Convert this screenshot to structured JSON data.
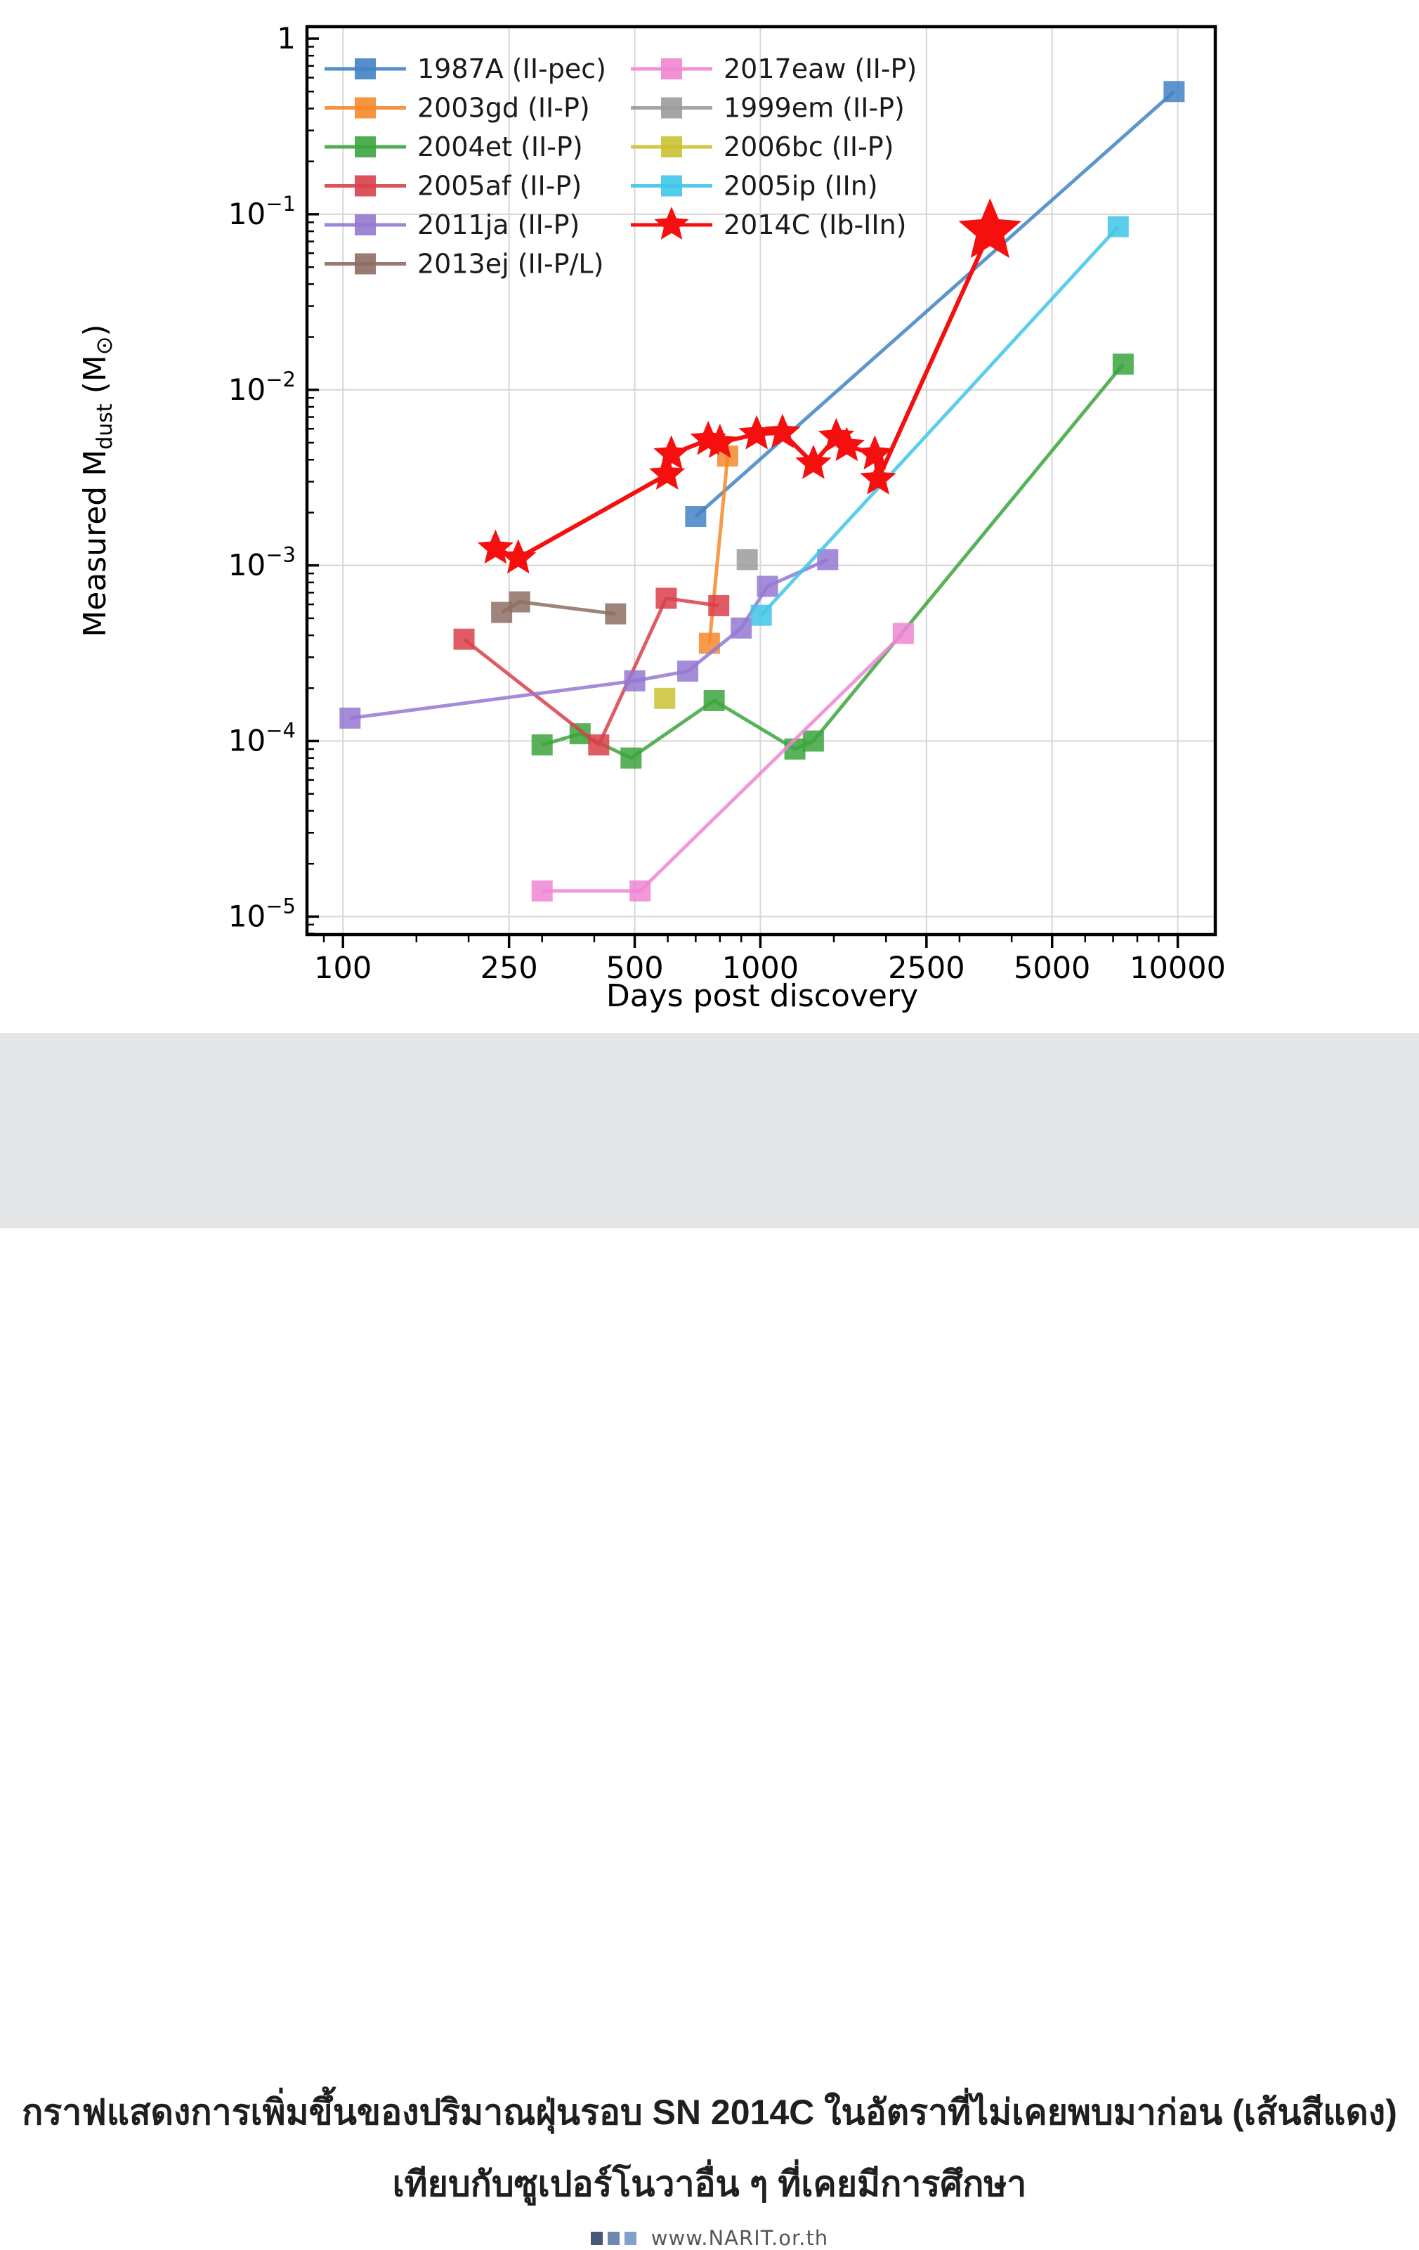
{
  "chart_data": {
    "type": "line",
    "title": "",
    "xlabel": "Days post discovery",
    "ylabel": "Measured M_dust (M_sun)",
    "ylabel_parts": {
      "prefix": "Measured M",
      "sub": "dust",
      "mid": " (M",
      "sun": "⊙",
      "suffix": ")"
    },
    "x_scale": "log",
    "y_scale": "log",
    "xlim": [
      82,
      12300
    ],
    "ylim": [
      7.9e-06,
      1.17
    ],
    "x_major_ticks": [
      100,
      250,
      500,
      1000,
      2500,
      5000,
      10000
    ],
    "y_major_tick_exponents": [
      0,
      -1,
      -2,
      -3,
      -4,
      -5
    ],
    "grid": true,
    "legend_position": "upper-left two-column frameless",
    "legend_columns": [
      [
        0,
        1,
        2,
        3,
        4,
        5
      ],
      [
        6,
        7,
        8,
        9,
        10
      ]
    ],
    "series": [
      {
        "name": "1987A",
        "type_label": "II-pec",
        "legend_label": "1987A (II-pec)",
        "color": "#4383c4",
        "marker": "square",
        "points": [
          [
            700,
            0.0019
          ],
          [
            9800,
            0.5
          ]
        ]
      },
      {
        "name": "2003gd",
        "type_label": "II-P",
        "legend_label": "2003gd (II-P)",
        "color": "#f6882b",
        "marker": "square",
        "points": [
          [
            755,
            0.00036
          ],
          [
            835,
            0.0042
          ]
        ]
      },
      {
        "name": "2004et",
        "type_label": "II-P",
        "legend_label": "2004et (II-P)",
        "color": "#3ca53c",
        "marker": "square",
        "points": [
          [
            300,
            9.5e-05
          ],
          [
            370,
            0.00011
          ],
          [
            490,
            8e-05
          ],
          [
            775,
            0.00017
          ],
          [
            1210,
            9e-05
          ],
          [
            1340,
            0.0001
          ],
          [
            7400,
            0.014
          ]
        ]
      },
      {
        "name": "2005af",
        "type_label": "II-P",
        "legend_label": "2005af (II-P)",
        "color": "#d9404a",
        "marker": "square",
        "points": [
          [
            195,
            0.00038
          ],
          [
            410,
            9.5e-05
          ],
          [
            595,
            0.00065
          ],
          [
            795,
            0.00059
          ]
        ]
      },
      {
        "name": "2011ja",
        "type_label": "II-P",
        "legend_label": "2011ja (II-P)",
        "color": "#9478d2",
        "marker": "square",
        "points": [
          [
            104,
            0.000135
          ],
          [
            500,
            0.00022
          ],
          [
            670,
            0.00025
          ],
          [
            900,
            0.00044
          ],
          [
            1040,
            0.00076
          ],
          [
            1450,
            0.00108
          ]
        ]
      },
      {
        "name": "2013ej",
        "type_label": "II-P/L",
        "legend_label": "2013ej (II-P/L)",
        "color": "#8d6e63",
        "marker": "square",
        "points": [
          [
            240,
            0.00054
          ],
          [
            265,
            0.00062
          ],
          [
            450,
            0.00053
          ]
        ]
      },
      {
        "name": "2017eaw",
        "type_label": "II-P",
        "legend_label": "2017eaw (II-P)",
        "color": "#ef86d3",
        "marker": "square",
        "points": [
          [
            300,
            1.4e-05
          ],
          [
            515,
            1.4e-05
          ],
          [
            2200,
            0.00041
          ]
        ]
      },
      {
        "name": "1999em",
        "type_label": "II-P",
        "legend_label": "1999em (II-P)",
        "color": "#9b9b9b",
        "marker": "square",
        "points": [
          [
            930,
            0.00108
          ]
        ]
      },
      {
        "name": "2006bc",
        "type_label": "II-P",
        "legend_label": "2006bc (II-P)",
        "color": "#c9c232",
        "marker": "square",
        "points": [
          [
            590,
            0.000175
          ]
        ]
      },
      {
        "name": "2005ip",
        "type_label": "IIn",
        "legend_label": "2005ip (IIn)",
        "color": "#3fc6e8",
        "marker": "square",
        "points": [
          [
            1005,
            0.00052
          ],
          [
            7200,
            0.085
          ]
        ]
      },
      {
        "name": "2014C",
        "type_label": "Ib-IIn",
        "legend_label": "2014C (Ib-IIn)",
        "color": "#f50f0f",
        "marker": "star",
        "last_marker_large": true,
        "points": [
          [
            232,
            0.00125
          ],
          [
            263,
            0.0011
          ],
          [
            598,
            0.0033
          ],
          [
            612,
            0.0043
          ],
          [
            750,
            0.0052
          ],
          [
            800,
            0.005
          ],
          [
            980,
            0.0056
          ],
          [
            1130,
            0.0057
          ],
          [
            1340,
            0.0038
          ],
          [
            1520,
            0.0054
          ],
          [
            1610,
            0.0048
          ],
          [
            1880,
            0.0043
          ],
          [
            1915,
            0.0031
          ],
          [
            3550,
            0.08
          ]
        ]
      }
    ]
  },
  "caption": {
    "line1": "กราฟแสดงการเพิ่มขึ้นของปริมาณฝุ่นรอบ SN 2014C ในอัตราที่ไม่เคยพบมาก่อน (เส้นสีแดง)",
    "line2": "เทียบกับซูเปอร์โนวาอื่น ๆ ที่เคยมีการศึกษา",
    "background": "#e4e5e7",
    "text_color": "#1f1f1f"
  },
  "footer": {
    "url": "www.NARIT.or.th",
    "logo_colors": [
      "#47587a",
      "#6e87ac",
      "#82a0cc"
    ],
    "text_color": "#575757"
  }
}
